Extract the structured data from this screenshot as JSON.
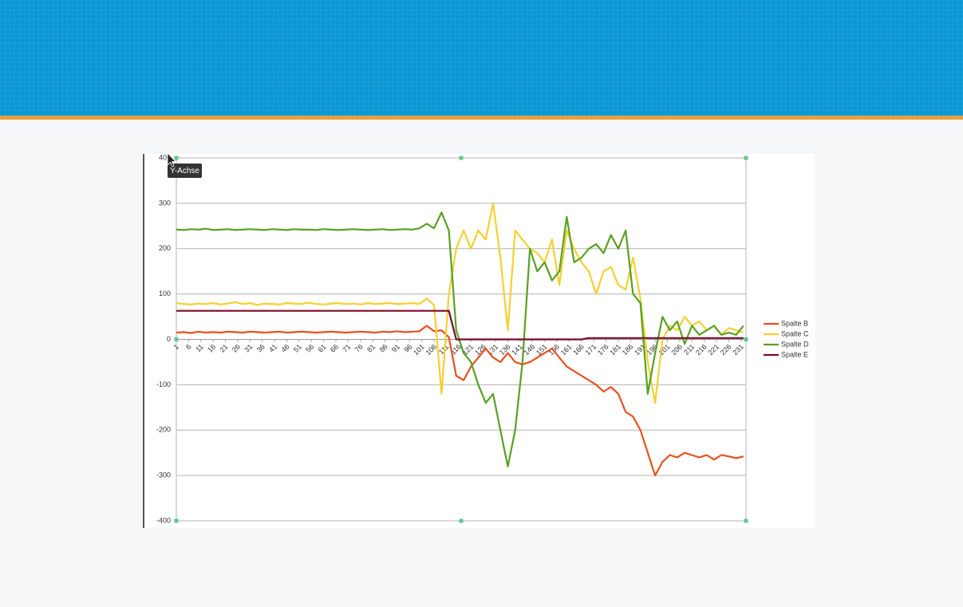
{
  "chart_data": {
    "type": "line",
    "x": [
      1,
      4,
      7,
      10,
      13,
      16,
      19,
      22,
      25,
      28,
      31,
      34,
      37,
      40,
      43,
      46,
      49,
      52,
      55,
      58,
      61,
      64,
      67,
      70,
      73,
      76,
      79,
      82,
      85,
      88,
      91,
      94,
      97,
      100,
      103,
      106,
      109,
      112,
      115,
      118,
      121,
      124,
      127,
      130,
      133,
      136,
      139,
      142,
      145,
      148,
      151,
      154,
      157,
      160,
      163,
      166,
      169,
      172,
      175,
      178,
      181,
      184,
      187,
      190,
      193,
      196,
      199,
      202,
      205,
      208,
      211,
      214,
      217,
      220,
      223,
      226,
      229,
      232
    ],
    "xlim": [
      1,
      233
    ],
    "xticks": [
      1,
      6,
      11,
      16,
      21,
      26,
      31,
      36,
      41,
      46,
      51,
      56,
      61,
      66,
      71,
      76,
      81,
      86,
      91,
      96,
      101,
      106,
      111,
      116,
      121,
      126,
      131,
      136,
      141,
      146,
      151,
      156,
      161,
      166,
      171,
      176,
      181,
      186,
      191,
      196,
      201,
      206,
      211,
      216,
      221,
      226,
      231
    ],
    "ylim": [
      -400,
      400
    ],
    "yticks": [
      -400,
      -300,
      -200,
      -100,
      0,
      100,
      200,
      300,
      400
    ],
    "grid": true,
    "legend": "right",
    "series": [
      {
        "name": "Spalte B",
        "color": "#e8501e",
        "values": [
          15,
          16,
          14,
          17,
          15,
          16,
          15,
          17,
          16,
          15,
          17,
          16,
          15,
          16,
          17,
          15,
          16,
          17,
          16,
          15,
          16,
          17,
          16,
          15,
          16,
          17,
          16,
          15,
          17,
          16,
          18,
          16,
          17,
          18,
          30,
          18,
          20,
          5,
          -80,
          -90,
          -60,
          -40,
          -20,
          -40,
          -50,
          -30,
          -50,
          -55,
          -50,
          -40,
          -30,
          -20,
          -40,
          -60,
          -70,
          -80,
          -90,
          -100,
          -115,
          -105,
          -120,
          -160,
          -170,
          -200,
          -250,
          -300,
          -270,
          -255,
          -260,
          -250,
          -255,
          -260,
          -255,
          -265,
          -255,
          -258,
          -262,
          -258
        ]
      },
      {
        "name": "Spalte C",
        "color": "#f5d031",
        "values": [
          80,
          78,
          77,
          79,
          78,
          80,
          77,
          79,
          82,
          78,
          80,
          76,
          79,
          78,
          77,
          80,
          79,
          78,
          81,
          78,
          77,
          79,
          80,
          78,
          79,
          77,
          80,
          78,
          79,
          80,
          78,
          79,
          80,
          78,
          90,
          75,
          -120,
          100,
          200,
          240,
          200,
          240,
          220,
          300,
          180,
          20,
          240,
          220,
          200,
          190,
          170,
          220,
          120,
          240,
          200,
          170,
          150,
          100,
          150,
          160,
          120,
          110,
          180,
          90,
          -50,
          -140,
          0,
          30,
          20,
          50,
          30,
          40,
          20,
          30,
          10,
          25,
          20,
          15
        ]
      },
      {
        "name": "Spalte D",
        "color": "#57a121",
        "values": [
          242,
          241,
          243,
          242,
          244,
          241,
          242,
          243,
          241,
          242,
          243,
          242,
          241,
          243,
          242,
          241,
          243,
          242,
          242,
          241,
          243,
          242,
          241,
          242,
          243,
          242,
          241,
          242,
          243,
          241,
          242,
          243,
          242,
          245,
          255,
          245,
          280,
          240,
          20,
          -30,
          -50,
          -100,
          -140,
          -120,
          -200,
          -280,
          -200,
          -50,
          200,
          150,
          170,
          130,
          150,
          270,
          170,
          180,
          200,
          210,
          190,
          230,
          200,
          240,
          100,
          80,
          -120,
          -30,
          50,
          20,
          40,
          -10,
          30,
          10,
          20,
          30,
          10,
          15,
          10,
          30
        ]
      },
      {
        "name": "Spalte E",
        "color": "#7b0a2a",
        "values": [
          63,
          63,
          63,
          63,
          63,
          63,
          63,
          63,
          63,
          63,
          63,
          63,
          63,
          63,
          63,
          63,
          63,
          63,
          63,
          63,
          63,
          63,
          63,
          63,
          63,
          63,
          63,
          63,
          63,
          63,
          63,
          63,
          63,
          63,
          63,
          63,
          63,
          63,
          0,
          0,
          0,
          0,
          0,
          0,
          0,
          0,
          0,
          0,
          0,
          0,
          0,
          0,
          0,
          0,
          0,
          0,
          3,
          3,
          3,
          3,
          3,
          3,
          3,
          3,
          3,
          3,
          3,
          3,
          3,
          3,
          3,
          3,
          3,
          3,
          3,
          3,
          3,
          3
        ]
      }
    ]
  },
  "tooltip": "Y-Achse"
}
